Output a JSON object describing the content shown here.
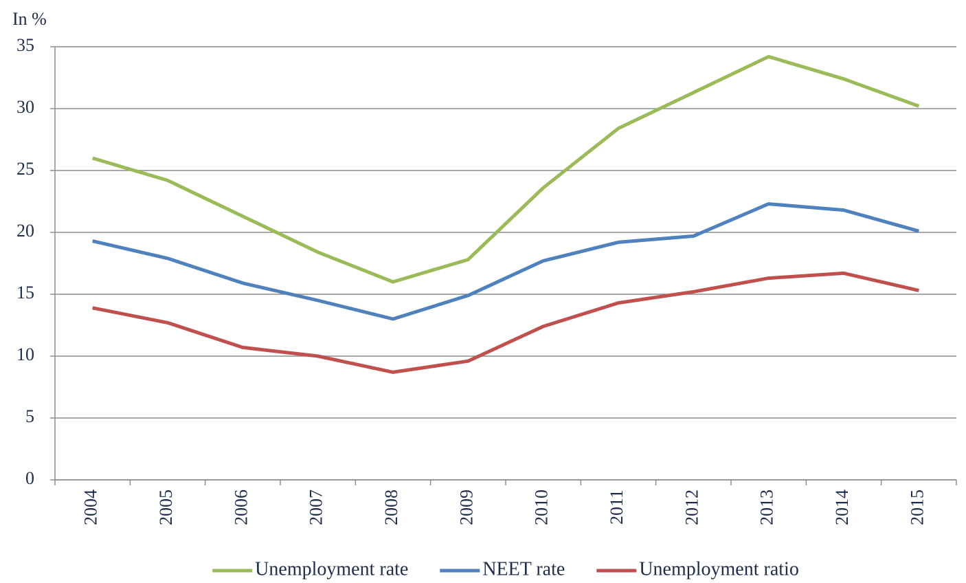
{
  "chart_data": {
    "type": "line",
    "y_axis_label": "In %",
    "categories": [
      "2004",
      "2005",
      "2006",
      "2007",
      "2008",
      "2009",
      "2010",
      "2011",
      "2012",
      "2013",
      "2014",
      "2015"
    ],
    "series": [
      {
        "name": "Unemployment rate",
        "color": "#9bbb59",
        "values": [
          26,
          24.2,
          21.3,
          18.4,
          16,
          17.8,
          23.6,
          28.4,
          31.3,
          34.2,
          32.4,
          30.2
        ]
      },
      {
        "name": "NEET rate",
        "color": "#4f81bd",
        "values": [
          19.3,
          17.9,
          15.9,
          14.5,
          13,
          14.9,
          17.7,
          19.2,
          19.7,
          22.3,
          21.8,
          20.1
        ]
      },
      {
        "name": "Unemployment ratio",
        "color": "#c0504d",
        "values": [
          13.9,
          12.7,
          10.7,
          10,
          8.7,
          9.6,
          12.4,
          14.3,
          15.2,
          16.3,
          16.7,
          15.3
        ]
      }
    ],
    "ylim": [
      0,
      35
    ],
    "yticks": [
      0,
      5,
      10,
      15,
      20,
      25,
      30,
      35
    ],
    "grid": true,
    "legend": "bottom"
  }
}
